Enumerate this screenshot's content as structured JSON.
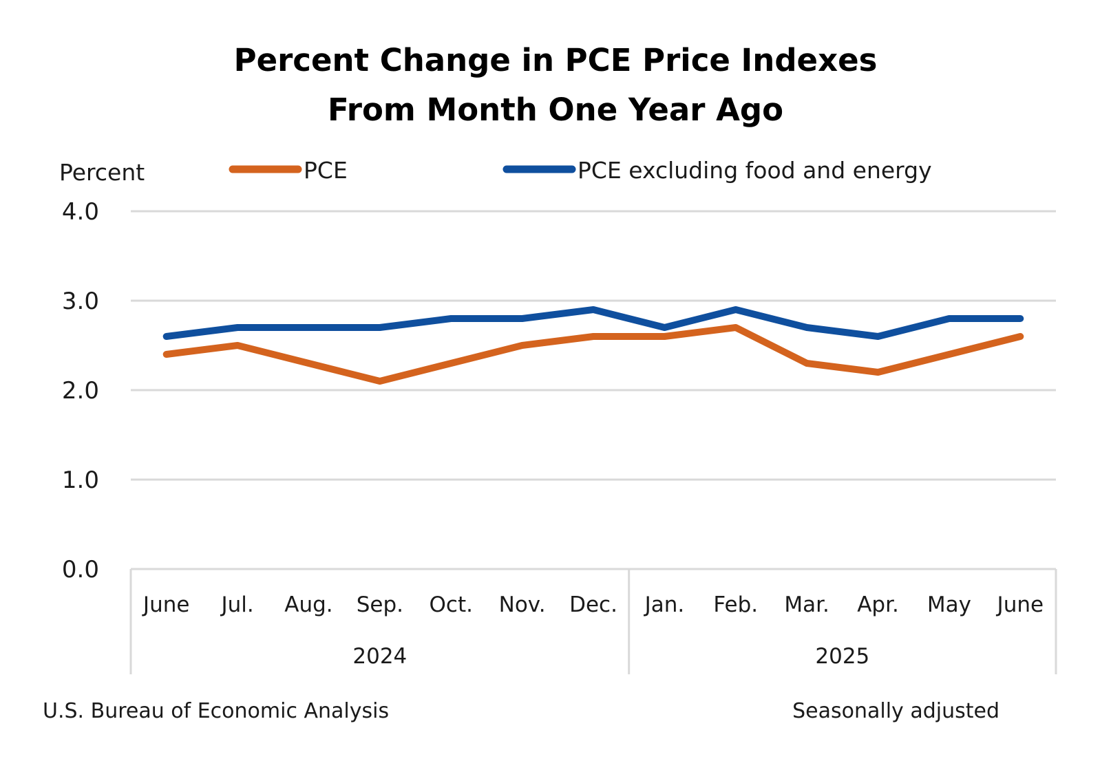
{
  "chart_data": {
    "type": "line",
    "title": [
      "Percent Change in PCE Price Indexes",
      "From Month One Year Ago"
    ],
    "ylabel": "Percent",
    "ylim": [
      0,
      4
    ],
    "yticks": [
      "0.0",
      "1.0",
      "2.0",
      "3.0",
      "4.0"
    ],
    "categories": [
      "June",
      "Jul.",
      "Aug.",
      "Sep.",
      "Oct.",
      "Nov.",
      "Dec.",
      "Jan.",
      "Feb.",
      "Mar.",
      "Apr.",
      "May",
      "June"
    ],
    "years": [
      {
        "label": "2024",
        "start": 0,
        "end": 6
      },
      {
        "label": "2025",
        "start": 7,
        "end": 12
      }
    ],
    "series": [
      {
        "name": "PCE",
        "color": "#d4631e",
        "values": [
          2.4,
          2.5,
          2.3,
          2.1,
          2.3,
          2.5,
          2.6,
          2.6,
          2.7,
          2.3,
          2.2,
          2.4,
          2.6
        ]
      },
      {
        "name": "PCE excluding food and energy",
        "color": "#0f4f9e",
        "values": [
          2.6,
          2.7,
          2.7,
          2.7,
          2.8,
          2.8,
          2.9,
          2.7,
          2.9,
          2.7,
          2.6,
          2.8,
          2.8
        ]
      }
    ],
    "grid": true,
    "gridColor": "#d9d9d9",
    "legend": "top"
  },
  "footer": {
    "source": "U.S. Bureau of Economic Analysis",
    "note": "Seasonally adjusted"
  }
}
